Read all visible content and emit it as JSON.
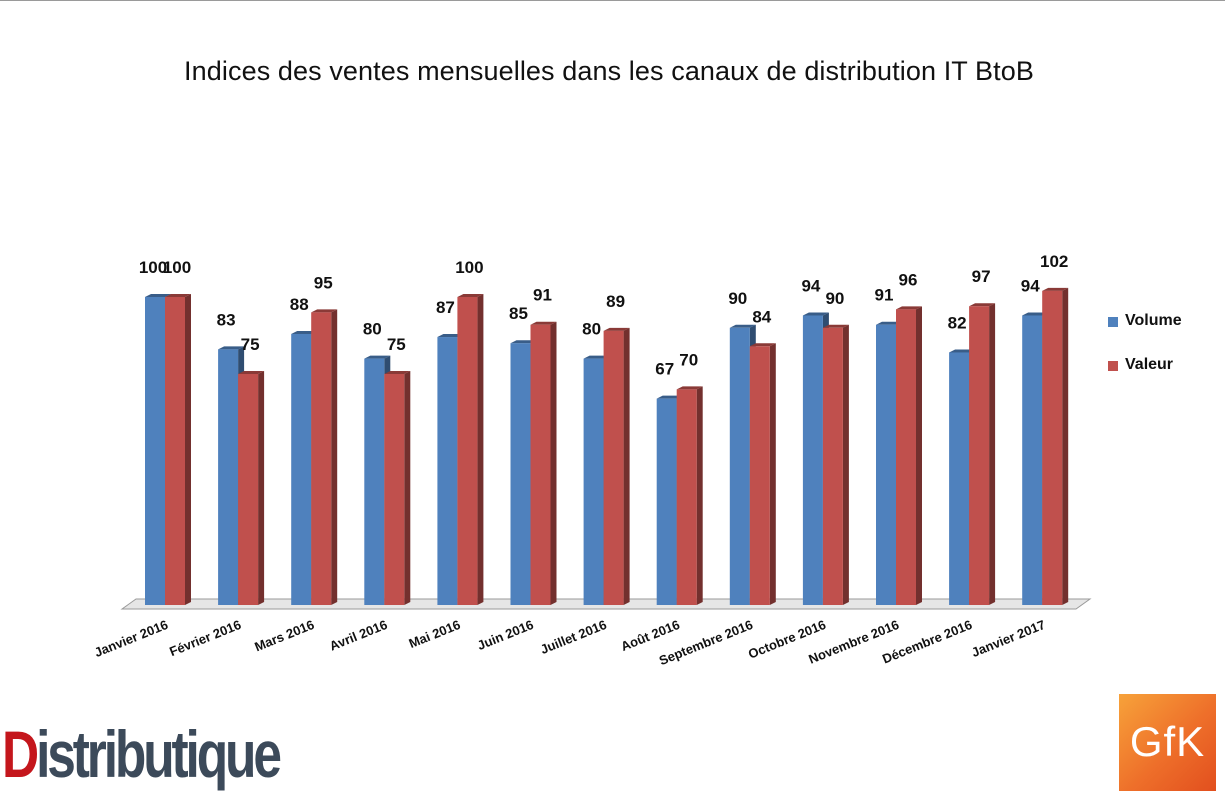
{
  "chart_data": {
    "type": "bar",
    "title": "Indices des ventes mensuelles dans les canaux de distribution IT BtoB",
    "categories": [
      "Janvier 2016",
      "Février 2016",
      "Mars 2016",
      "Avril 2016",
      "Mai 2016",
      "Juin 2016",
      "Juillet 2016",
      "Août 2016",
      "Septembre 2016",
      "Octobre 2016",
      "Novembre 2016",
      "Décembre 2016",
      "Janvier 2017"
    ],
    "series": [
      {
        "name": "Volume",
        "values": [
          100,
          83,
          88,
          80,
          87,
          85,
          80,
          67,
          90,
          94,
          91,
          82,
          94
        ],
        "color": "#4f81bd"
      },
      {
        "name": "Valeur",
        "values": [
          100,
          75,
          95,
          75,
          100,
          91,
          89,
          70,
          84,
          90,
          96,
          97,
          102
        ],
        "color": "#c0504d"
      }
    ],
    "ylim": [
      0,
      102
    ],
    "grid": false,
    "legend": "right",
    "data_labels": true
  },
  "logos": {
    "distributique": {
      "d": "D",
      "rest": "istributique"
    },
    "gfk": "GfK"
  }
}
